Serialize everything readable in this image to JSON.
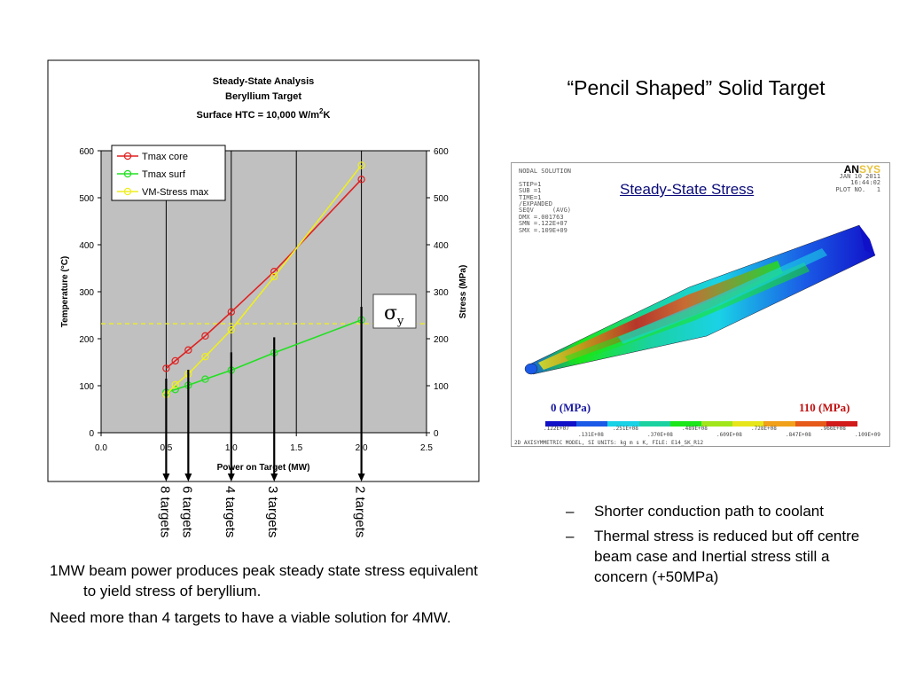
{
  "slide": {
    "title": "“Pencil Shaped” Solid Target",
    "notes": [
      "1MW beam power produces peak steady state stress equivalent to yield stress of beryllium.",
      "Need more than 4 targets to have a viable solution for 4MW."
    ],
    "bullets": [
      "Shorter conduction path to coolant",
      "Thermal stress is reduced but off centre beam case and Inertial stress still a concern (+50MPa)"
    ],
    "bullet_marker": "–"
  },
  "chart_data": {
    "type": "line",
    "title_lines": [
      "Steady-State Analysis",
      "Beryllium Target"
    ],
    "title_htc": {
      "prefix": "Surface HTC = 10,000 W/m",
      "sup": "2",
      "suffix": "K"
    },
    "xlabel": "Power on Target (MW)",
    "ylabel_left": "Temperature (°C)",
    "ylabel_right": "Stress (MPa)",
    "xlim": [
      0,
      2.5
    ],
    "ylim": [
      0,
      600
    ],
    "x_ticks": [
      "0.0",
      "0.5",
      "1.0",
      "1.5",
      "2.0",
      "2.5"
    ],
    "y_ticks": [
      "0",
      "100",
      "200",
      "300",
      "400",
      "500",
      "600"
    ],
    "grid": {
      "vertical_major": true,
      "horizontal": false
    },
    "plot_background": "#c0c0c0",
    "legend_position": "top-left",
    "series": [
      {
        "name": "Tmax core",
        "color": "#e02020",
        "x": [
          0.5,
          0.57,
          0.67,
          0.8,
          1.0,
          1.33,
          2.0
        ],
        "y": [
          137,
          153,
          176,
          206,
          257,
          343,
          539
        ]
      },
      {
        "name": "Tmax surf",
        "color": "#22e022",
        "x": [
          0.5,
          0.57,
          0.67,
          0.8,
          1.0,
          1.33,
          2.0
        ],
        "y": [
          86,
          92,
          101,
          114,
          133,
          170,
          240
        ]
      },
      {
        "name": "VM-Stress max",
        "color": "#eeee22",
        "x": [
          0.5,
          0.57,
          0.67,
          0.8,
          1.0,
          1.33,
          2.0
        ],
        "y": [
          81,
          102,
          125,
          162,
          219,
          332,
          569
        ]
      }
    ],
    "yield_line": {
      "y": 232,
      "color": "#eeee22",
      "label": "σ",
      "label_sub": "y"
    },
    "target_markers": [
      {
        "x": 0.5,
        "label": "8 targets"
      },
      {
        "x": 0.67,
        "label": "6 targets"
      },
      {
        "x": 1.0,
        "label": "4 targets"
      },
      {
        "x": 1.33,
        "label": "3 targets"
      },
      {
        "x": 2.0,
        "label": "2 targets"
      }
    ]
  },
  "simulation": {
    "info_lines": [
      "NODAL SOLUTION",
      "",
      "STEP=1",
      "SUB =1",
      "TIME=1",
      "/EXPANDED",
      "SEQV     (AVG)",
      "DMX =.001763",
      "SMN =.122E+07",
      "SMX =.109E+09"
    ],
    "date_lines": [
      "JAN 10 2011",
      "16:44:02",
      "PLOT NO.   1"
    ],
    "logo_main": "AN",
    "logo_accent": "SYS",
    "heading": "Steady-State Stress",
    "scale_min_label": "0 (MPa)",
    "scale_max_label": "110 (MPa)",
    "contour_colors": [
      "#1010c8",
      "#1a5ae6",
      "#1ad2e6",
      "#1ad2a0",
      "#1ae61a",
      "#a0e61a",
      "#e6e61a",
      "#f0a01a",
      "#e65a1a",
      "#d21a1a"
    ],
    "scale_ticks": [
      ".122E+07",
      ".131E+08",
      ".251E+08",
      ".370E+08",
      ".489E+08",
      ".609E+08",
      ".728E+08",
      ".847E+08",
      ".966E+08",
      ".109E+09"
    ],
    "footer": "2D AXISYMMETRIC MODEL, SI UNITS: kg m s K, FILE: E14_SK_R12"
  }
}
